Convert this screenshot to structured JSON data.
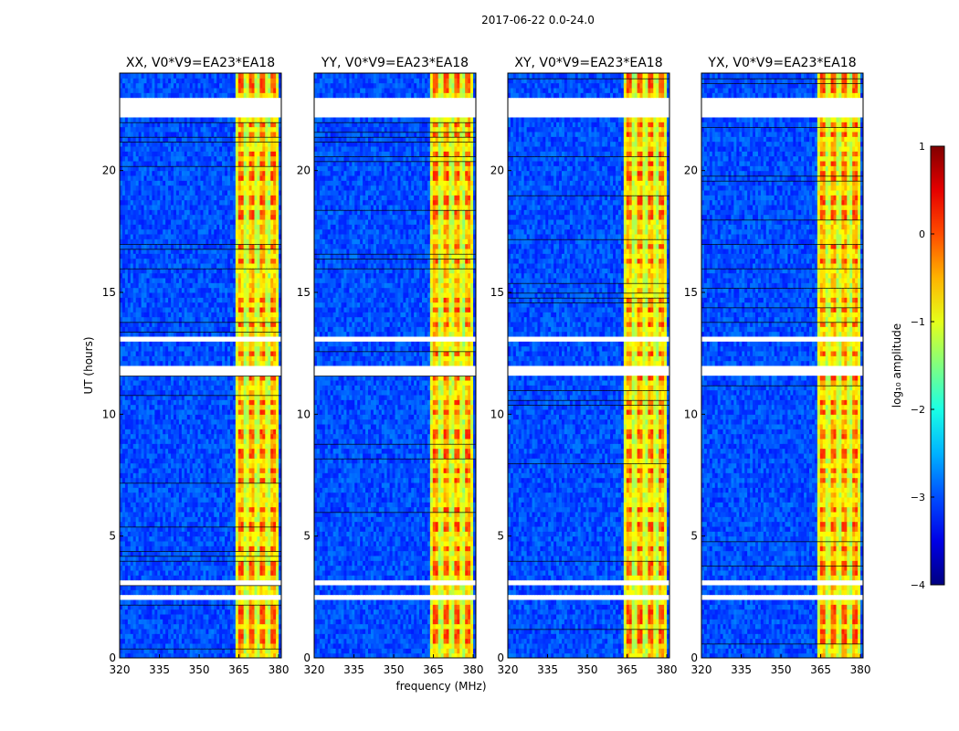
{
  "figure": {
    "suptitle": "2017-06-22 0.0-24.0"
  },
  "chart_data": {
    "type": "heatmap",
    "panels": [
      {
        "title": "XX, V0*V9=EA23*EA18"
      },
      {
        "title": "YY, V0*V9=EA23*EA18"
      },
      {
        "title": "XY, V0*V9=EA23*EA18"
      },
      {
        "title": "YX, V0*V9=EA23*EA18"
      }
    ],
    "xlabel": "frequency (MHz)",
    "ylabel": "UT (hours)",
    "xlim": [
      320,
      381
    ],
    "ylim": [
      0,
      24
    ],
    "xticks": [
      320,
      335,
      350,
      365,
      380
    ],
    "yticks": [
      0,
      5,
      10,
      15,
      20
    ],
    "colorbar": {
      "label": "log₁₀ amplitude",
      "range": [
        -4,
        1
      ],
      "ticks": [
        -4,
        -3,
        -2,
        -1,
        0,
        1
      ],
      "tick_labels": [
        "−4",
        "−3",
        "−2",
        "−1",
        "0",
        "1"
      ],
      "colormap": "jet"
    },
    "signal_band_MHz": [
      363.5,
      380
    ],
    "background_level": -3,
    "signal_level": -1,
    "strong_level": 0,
    "flagged_intervals_hours": [
      [
        22.15,
        22.95
      ],
      [
        11.65,
        12.0
      ],
      [
        13.05,
        13.2
      ],
      [
        3.05,
        3.15
      ],
      [
        2.5,
        2.65
      ],
      [
        0.55,
        0.65
      ]
    ],
    "grid": false,
    "legend": "none"
  },
  "colors": {
    "background": "#ffffff",
    "axis": "#000000",
    "jet_low": "#00007f",
    "jet_high": "#7f0000"
  }
}
